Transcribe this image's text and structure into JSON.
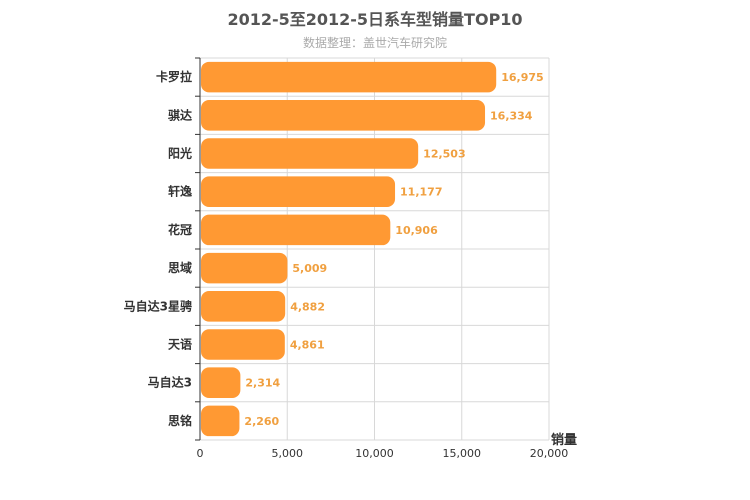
{
  "chart_data": {
    "type": "bar",
    "orientation": "horizontal",
    "title": "2012-5至2012-5日系车型销量TOP10",
    "subtitle": "数据整理：盖世汽车研究院",
    "categories": [
      "卡罗拉",
      "骐达",
      "阳光",
      "轩逸",
      "花冠",
      "思域",
      "马自达3星骋",
      "天语",
      "马自达3",
      "思铭"
    ],
    "values": [
      16975,
      16334,
      12503,
      11177,
      10906,
      5009,
      4882,
      4861,
      2314,
      2260
    ],
    "value_labels": [
      "16,975",
      "16,334",
      "12,503",
      "11,177",
      "10,906",
      "5,009",
      "4,882",
      "4,861",
      "2,314",
      "2,260"
    ],
    "xlabel": "销量",
    "xlim": [
      0,
      20000
    ],
    "xticks": [
      0,
      5000,
      10000,
      15000,
      20000
    ],
    "xtick_labels": [
      "0",
      "5,000",
      "10,000",
      "15,000",
      "20,000"
    ],
    "grid": true,
    "bar_color": "#ff9933",
    "label_color": "#f0a040"
  }
}
